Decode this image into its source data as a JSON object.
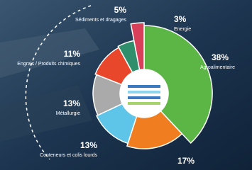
{
  "chart_data": {
    "type": "pie",
    "categories": [
      "Agroalimentaire",
      null,
      "Conteneurs et colis lourds",
      "Métallurgie",
      "Engrais / Produits chimiques",
      "Sédiments et dragages",
      "Energie"
    ],
    "values": [
      38,
      17,
      13,
      13,
      11,
      5,
      3
    ],
    "value_labels": [
      "38%",
      "17%",
      "13%",
      "13%",
      "11%",
      "5%",
      "3%"
    ],
    "colors": [
      "#5cb646",
      "#f07d1f",
      "#5ec4e8",
      "#a9aaa9",
      "#e9472c",
      "#2f8e6c",
      "#d8405a"
    ]
  }
}
